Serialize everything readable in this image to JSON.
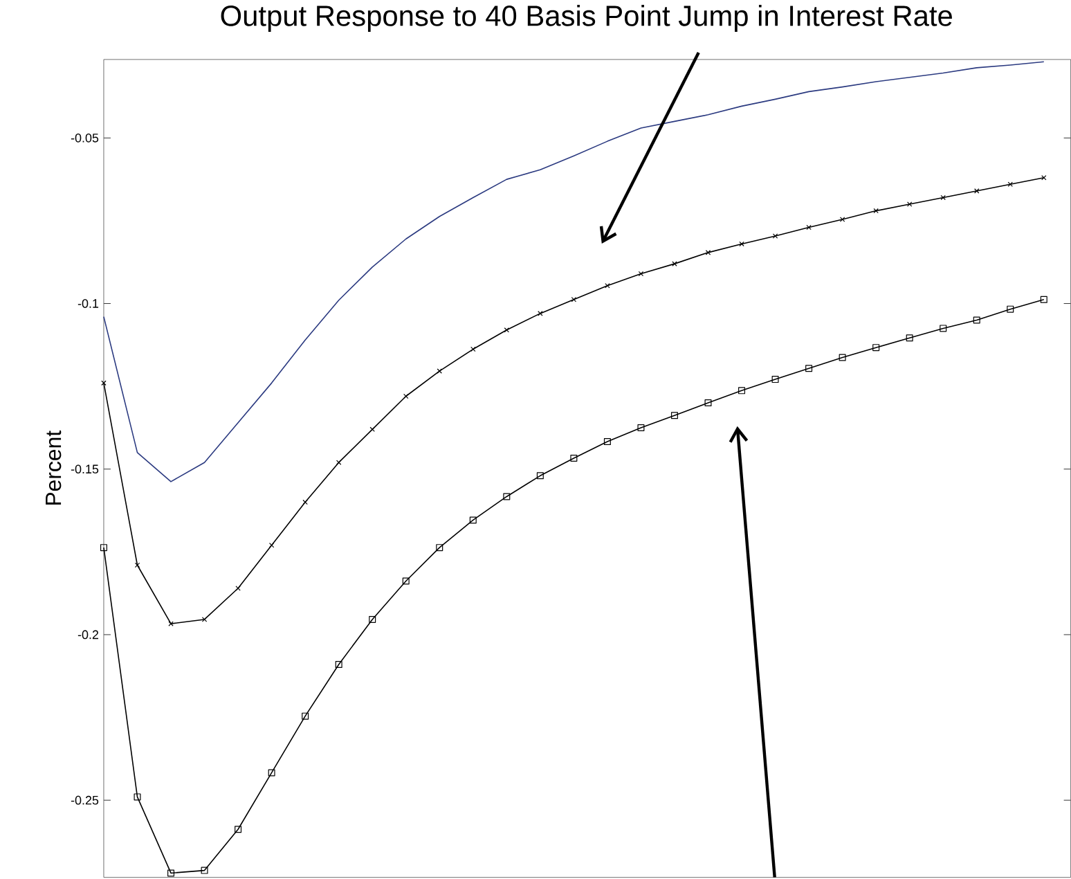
{
  "chart_data": {
    "type": "line",
    "title": "Output Response to 40 Basis Point Jump in Interest Rate",
    "ylabel": "Percent",
    "categories": [
      null,
      null,
      null,
      null,
      null,
      null,
      null,
      null,
      null,
      null,
      null,
      null,
      null,
      null,
      null,
      null,
      null,
      null,
      null,
      null,
      null,
      null,
      null,
      null,
      null,
      null,
      null,
      null,
      null
    ],
    "series": [
      {
        "color": "#2b3a80",
        "marker": "none",
        "values": [
          -0.104,
          -0.145,
          -0.1538,
          -0.148,
          -0.136,
          -0.124,
          -0.111,
          -0.099,
          -0.089,
          -0.0805,
          -0.0737,
          -0.068,
          -0.0625,
          -0.0596,
          -0.0554,
          -0.051,
          -0.047,
          -0.045,
          -0.043,
          -0.0404,
          -0.0383,
          -0.036,
          -0.0346,
          -0.033,
          -0.0317,
          -0.0304,
          -0.0288,
          -0.028,
          -0.027
        ]
      },
      {
        "color": "#000000",
        "marker": "cross",
        "values": [
          -0.124,
          -0.179,
          -0.1967,
          -0.1954,
          -0.186,
          -0.173,
          -0.16,
          -0.148,
          -0.138,
          -0.128,
          -0.1204,
          -0.1138,
          -0.108,
          -0.103,
          -0.0988,
          -0.0946,
          -0.091,
          -0.088,
          -0.0846,
          -0.082,
          -0.0796,
          -0.077,
          -0.0746,
          -0.072,
          -0.07,
          -0.068,
          -0.066,
          -0.064,
          -0.062
        ]
      },
      {
        "color": "#000000",
        "marker": "square",
        "values": [
          -0.1737,
          -0.249,
          -0.272,
          -0.2712,
          -0.2588,
          -0.2417,
          -0.2246,
          -0.209,
          -0.1954,
          -0.1838,
          -0.1737,
          -0.1654,
          -0.1583,
          -0.152,
          -0.1467,
          -0.1417,
          -0.1375,
          -0.1338,
          -0.13,
          -0.1263,
          -0.1229,
          -0.1196,
          -0.1163,
          -0.1133,
          -0.1104,
          -0.1075,
          -0.105,
          -0.1017,
          -0.0988
        ]
      }
    ],
    "ylim": [
      -0.2733,
      -0.0263
    ],
    "yticks": [
      -0.25,
      -0.2,
      -0.15,
      -0.1,
      -0.05
    ],
    "tick_labels": "y"
  }
}
